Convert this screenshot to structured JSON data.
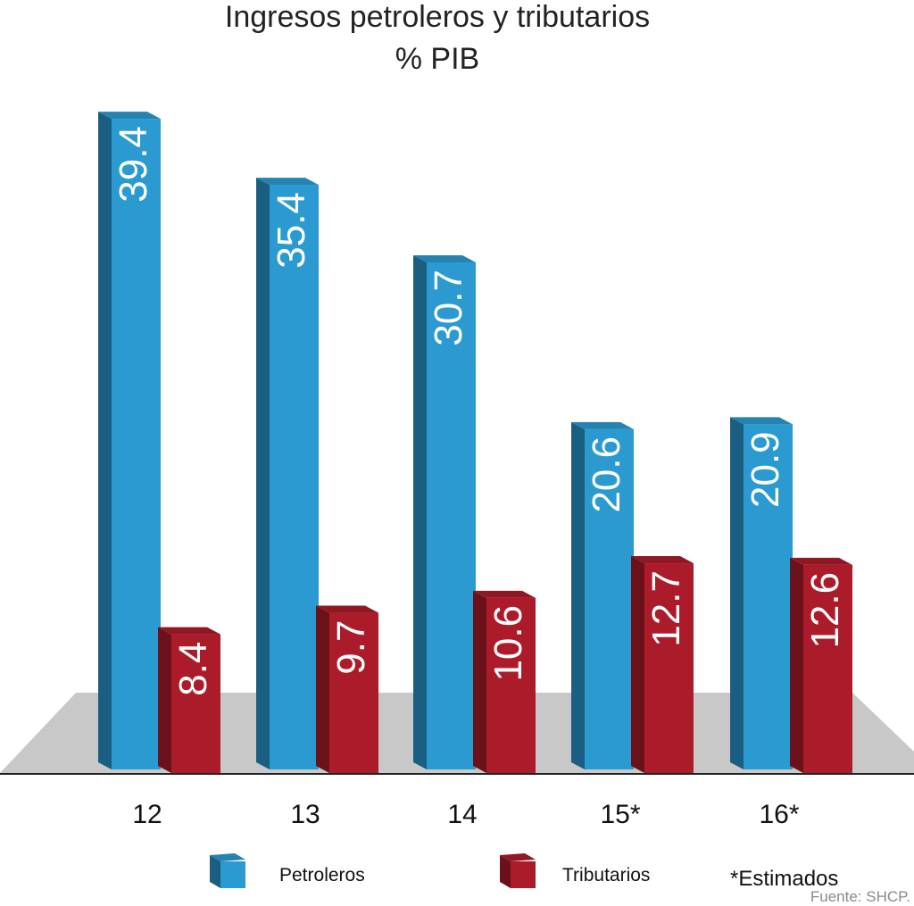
{
  "chart_data": {
    "type": "bar3d",
    "title": "Ingresos petroleros y tributarios",
    "subtitle": "% PIB",
    "categories": [
      "12",
      "13",
      "14",
      "15*",
      "16*"
    ],
    "series": [
      {
        "name": "Petroleros",
        "color": "#2a9ad0",
        "values": [
          39.4,
          35.4,
          30.7,
          20.6,
          20.9
        ]
      },
      {
        "name": "Tributarios",
        "color": "#ac1b2a",
        "values": [
          8.4,
          9.7,
          10.6,
          12.7,
          12.6
        ]
      }
    ],
    "note": "*Estimados",
    "source": "Fuente: SHCP."
  }
}
